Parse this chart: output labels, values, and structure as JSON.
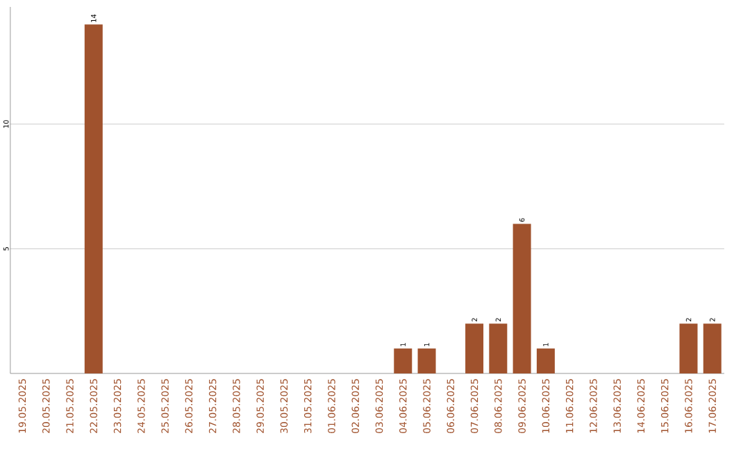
{
  "chart_data": {
    "type": "bar",
    "categories": [
      "19.05.2025",
      "20.05.2025",
      "21.05.2025",
      "22.05.2025",
      "23.05.2025",
      "24.05.2025",
      "25.05.2025",
      "26.05.2025",
      "27.05.2025",
      "28.05.2025",
      "29.05.2025",
      "30.05.2025",
      "31.05.2025",
      "01.06.2025",
      "02.06.2025",
      "03.06.2025",
      "04.06.2025",
      "05.06.2025",
      "06.06.2025",
      "07.06.2025",
      "08.06.2025",
      "09.06.2025",
      "10.06.2025",
      "11.06.2025",
      "12.06.2025",
      "13.06.2025",
      "14.06.2025",
      "15.06.2025",
      "16.06.2025",
      "17.06.2025"
    ],
    "values": [
      0,
      0,
      0,
      14,
      0,
      0,
      0,
      0,
      0,
      0,
      0,
      0,
      0,
      0,
      0,
      0,
      1,
      1,
      0,
      2,
      2,
      6,
      1,
      0,
      0,
      0,
      0,
      0,
      2,
      2
    ],
    "color": "#a0522d",
    "value_labels": [
      null,
      null,
      null,
      "14",
      null,
      null,
      null,
      null,
      null,
      null,
      null,
      null,
      null,
      null,
      null,
      null,
      "1",
      "1",
      null,
      "2",
      "2",
      "6",
      "1",
      null,
      null,
      null,
      null,
      null,
      "2",
      "2"
    ],
    "ylim": [
      0,
      14.7
    ],
    "yticks": [
      5,
      10
    ],
    "grid": "y"
  }
}
